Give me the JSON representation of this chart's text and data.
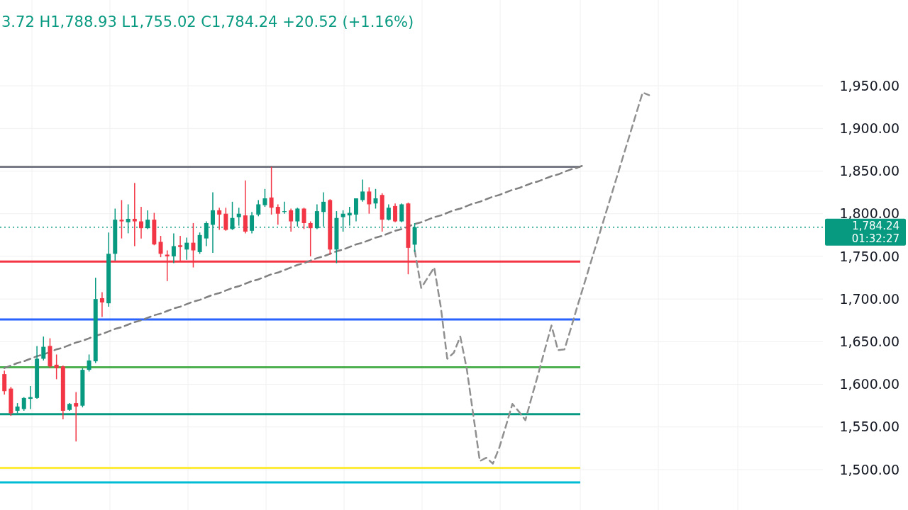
{
  "chart_data": {
    "type": "candlestick",
    "title": "3.72 H1,788.93 L1,755.02 C1,784.24 +20.52 (+1.16%)",
    "categories": [
      null,
      null,
      null,
      null,
      null,
      null,
      null,
      null,
      null,
      null,
      null,
      null,
      null,
      null,
      null,
      null,
      null,
      null,
      null,
      null,
      null,
      null,
      null,
      null,
      null,
      null,
      null,
      null,
      null,
      null,
      null,
      null,
      null,
      null,
      null,
      null,
      null,
      null,
      null,
      null,
      null,
      null,
      null,
      null,
      null,
      null,
      null,
      null,
      null,
      null,
      null,
      null,
      null,
      null,
      null,
      null,
      null,
      null,
      null,
      null,
      null,
      null,
      null,
      null,
      null,
      null,
      null,
      null,
      null,
      null,
      null,
      null,
      null,
      null,
      null,
      null,
      null,
      null,
      null,
      null,
      null,
      null,
      null,
      null,
      null,
      null,
      null,
      null,
      null,
      null,
      null,
      null,
      null,
      null,
      null,
      null,
      null,
      null,
      null,
      null,
      null,
      null,
      null,
      null,
      null,
      null,
      null,
      null,
      null,
      null,
      null,
      null,
      null,
      null,
      null,
      null,
      null,
      null,
      null,
      null,
      null,
      null,
      null,
      null,
      null,
      null
    ],
    "ohlc": [
      [
        1612,
        1616,
        1588,
        1592
      ],
      [
        1595,
        1597,
        1563,
        1566
      ],
      [
        1569,
        1578,
        1566,
        1574
      ],
      [
        1571,
        1585,
        1569,
        1584
      ],
      [
        1583,
        1598,
        1571,
        1585
      ],
      [
        1584,
        1645,
        1583,
        1630
      ],
      [
        1630,
        1656,
        1628,
        1644
      ],
      [
        1645,
        1654,
        1619,
        1621
      ],
      [
        1623,
        1635,
        1606,
        1619
      ],
      [
        1621,
        1622,
        1559,
        1569
      ],
      [
        1570,
        1578,
        1569,
        1577
      ],
      [
        1578,
        1591,
        1533,
        1574
      ],
      [
        1575,
        1619,
        1573,
        1617
      ],
      [
        1617,
        1635,
        1615,
        1628
      ],
      [
        1627,
        1725,
        1625,
        1700
      ],
      [
        1701,
        1708,
        1679,
        1696
      ],
      [
        1695,
        1778,
        1691,
        1753
      ],
      [
        1753,
        1806,
        1745,
        1793
      ],
      [
        1793,
        1816,
        1771,
        1791
      ],
      [
        1790,
        1811,
        1777,
        1794
      ],
      [
        1794,
        1836,
        1762,
        1791
      ],
      [
        1791,
        1808,
        1771,
        1783
      ],
      [
        1783,
        1804,
        1782,
        1793
      ],
      [
        1793,
        1801,
        1763,
        1764
      ],
      [
        1767,
        1774,
        1749,
        1753
      ],
      [
        1752,
        1757,
        1721,
        1750
      ],
      [
        1750,
        1777,
        1742,
        1762
      ],
      [
        1763,
        1774,
        1745,
        1761
      ],
      [
        1758,
        1772,
        1746,
        1766
      ],
      [
        1766,
        1789,
        1737,
        1757
      ],
      [
        1755,
        1778,
        1753,
        1775
      ],
      [
        1771,
        1791,
        1762,
        1789
      ],
      [
        1787,
        1825,
        1754,
        1804
      ],
      [
        1804,
        1807,
        1781,
        1799
      ],
      [
        1800,
        1807,
        1780,
        1781
      ],
      [
        1782,
        1814,
        1781,
        1795
      ],
      [
        1796,
        1807,
        1786,
        1800
      ],
      [
        1798,
        1839,
        1777,
        1779
      ],
      [
        1780,
        1802,
        1777,
        1798
      ],
      [
        1799,
        1816,
        1797,
        1811
      ],
      [
        1810,
        1829,
        1808,
        1818
      ],
      [
        1819,
        1855,
        1799,
        1807
      ],
      [
        1808,
        1811,
        1787,
        1800
      ],
      [
        1802,
        1814,
        1800,
        1803
      ],
      [
        1804,
        1806,
        1779,
        1791
      ],
      [
        1791,
        1807,
        1785,
        1806
      ],
      [
        1806,
        1807,
        1782,
        1789
      ],
      [
        1789,
        1791,
        1750,
        1783
      ],
      [
        1783,
        1811,
        1782,
        1803
      ],
      [
        1802,
        1825,
        1785,
        1814
      ],
      [
        1816,
        1817,
        1752,
        1758
      ],
      [
        1758,
        1803,
        1742,
        1795
      ],
      [
        1796,
        1804,
        1779,
        1800
      ],
      [
        1798,
        1808,
        1786,
        1801
      ],
      [
        1799,
        1818,
        1791,
        1818
      ],
      [
        1816,
        1840,
        1814,
        1826
      ],
      [
        1826,
        1831,
        1800,
        1811
      ],
      [
        1812,
        1829,
        1806,
        1818
      ],
      [
        1822,
        1824,
        1779,
        1793
      ],
      [
        1793,
        1811,
        1792,
        1807
      ],
      [
        1809,
        1812,
        1790,
        1791
      ],
      [
        1791,
        1812,
        1790,
        1811
      ],
      [
        1812,
        1813,
        1729,
        1760
      ],
      [
        1763.72,
        1788.93,
        1755.02,
        1784.24
      ],
      null,
      null,
      null,
      null,
      null,
      null,
      null,
      null,
      null,
      null,
      null,
      null,
      null,
      null,
      null,
      null,
      null,
      null,
      null,
      null,
      null,
      null,
      null,
      null,
      null,
      null,
      null,
      null,
      null,
      null,
      null,
      null,
      null,
      null,
      null,
      null,
      null,
      null,
      null,
      null,
      null,
      null,
      null,
      null,
      null,
      null,
      null,
      null,
      null,
      null,
      null,
      null,
      null,
      null,
      null,
      null,
      null,
      null,
      null,
      null,
      null,
      null
    ],
    "series": [
      {
        "type": "line",
        "color": "#808080",
        "line_style": "dashed",
        "values": [
          1619,
          1622,
          1625,
          1627,
          1630,
          1633,
          1635,
          1638,
          1641,
          1643,
          1646,
          1649,
          1651,
          1654,
          1657,
          1659,
          1662,
          1665,
          1667,
          1670,
          1673,
          1675,
          1678,
          1681,
          1683,
          1686,
          1689,
          1691,
          1694,
          1697,
          1699,
          1702,
          1705,
          1707,
          1710,
          1713,
          1715,
          1718,
          1721,
          1723,
          1726,
          1729,
          1731,
          1734,
          1737,
          1740,
          1742,
          1745,
          1748,
          1750,
          1753,
          1756,
          1758,
          1761,
          1764,
          1766,
          1769,
          1772,
          1774,
          1777,
          1780,
          1782,
          1785,
          1788,
          1790,
          1793,
          1796,
          1798,
          1801,
          1804,
          1806,
          1809,
          1812,
          1814,
          1817,
          1820,
          1822,
          1825,
          1828,
          1830,
          1833,
          1836,
          1838,
          1841,
          1844,
          1846,
          1849,
          1852,
          1854,
          1857,
          null,
          null,
          null,
          null,
          null,
          null,
          null,
          null,
          null,
          null,
          null,
          null,
          null,
          null,
          null,
          null,
          null,
          null,
          null,
          null,
          null,
          null,
          null,
          null,
          null,
          null,
          null,
          null,
          null,
          null,
          null,
          null,
          null,
          null,
          null,
          null
        ]
      },
      {
        "type": "line",
        "color": "#909090",
        "line_style": "dashed",
        "values": [
          null,
          null,
          null,
          null,
          null,
          null,
          null,
          null,
          null,
          null,
          null,
          null,
          null,
          null,
          null,
          null,
          null,
          null,
          null,
          null,
          null,
          null,
          null,
          null,
          null,
          null,
          null,
          null,
          null,
          null,
          null,
          null,
          null,
          null,
          null,
          null,
          null,
          null,
          null,
          null,
          null,
          null,
          null,
          null,
          null,
          null,
          null,
          null,
          null,
          null,
          null,
          null,
          null,
          null,
          null,
          null,
          null,
          null,
          null,
          null,
          null,
          null,
          null,
          1757,
          1713,
          1725,
          1737,
          1691,
          1630,
          1637,
          1656,
          1618,
          1564,
          1510,
          1514,
          1507,
          1526,
          1551,
          1577,
          1568,
          1558,
          1586,
          1613,
          1641,
          1669,
          1640,
          1641,
          1666,
          1692,
          1717,
          1742,
          1767,
          1792,
          1817,
          1842,
          1867,
          1892,
          1917,
          1942,
          1939,
          null,
          null,
          null,
          null,
          null,
          null,
          null,
          null,
          null,
          null,
          null,
          null,
          null,
          null,
          null,
          null,
          null,
          null,
          null,
          null,
          null,
          null,
          null,
          null,
          null,
          null
        ]
      }
    ],
    "ref_lines": [
      {
        "axis": "y",
        "value": 1784.24,
        "label": "1,784.24",
        "color": "#089981",
        "line_style": "dotted"
      },
      {
        "axis": "y",
        "value": 1855,
        "color": "#787b86"
      },
      {
        "axis": "y",
        "value": 1744,
        "color": "#f23645"
      },
      {
        "axis": "y",
        "value": 1676,
        "color": "#2962ff"
      },
      {
        "axis": "y",
        "value": 1620,
        "color": "#4caf50"
      },
      {
        "axis": "y",
        "value": 1565,
        "color": "#089981"
      },
      {
        "axis": "y",
        "value": 1502,
        "color": "#ffeb3b"
      },
      {
        "axis": "y",
        "value": 1485,
        "color": "#00bcd4"
      }
    ],
    "annotations": [
      "01:32:27"
    ],
    "ylim": [
      1452.7,
      2050.5
    ],
    "yticks": [
      {
        "value": 1500,
        "label": "1,500.00"
      },
      {
        "value": 1550,
        "label": "1,550.00"
      },
      {
        "value": 1600,
        "label": "1,600.00"
      },
      {
        "value": 1650,
        "label": "1,650.00"
      },
      {
        "value": 1700,
        "label": "1,700.00"
      },
      {
        "value": 1750,
        "label": "1,750.00"
      },
      {
        "value": 1800,
        "label": "1,800.00"
      },
      {
        "value": 1850,
        "label": "1,850.00"
      },
      {
        "value": 1900,
        "label": "1,900.00"
      },
      {
        "value": 1950,
        "label": "1,950.00"
      }
    ],
    "tick_labels": "y",
    "grid": true
  }
}
